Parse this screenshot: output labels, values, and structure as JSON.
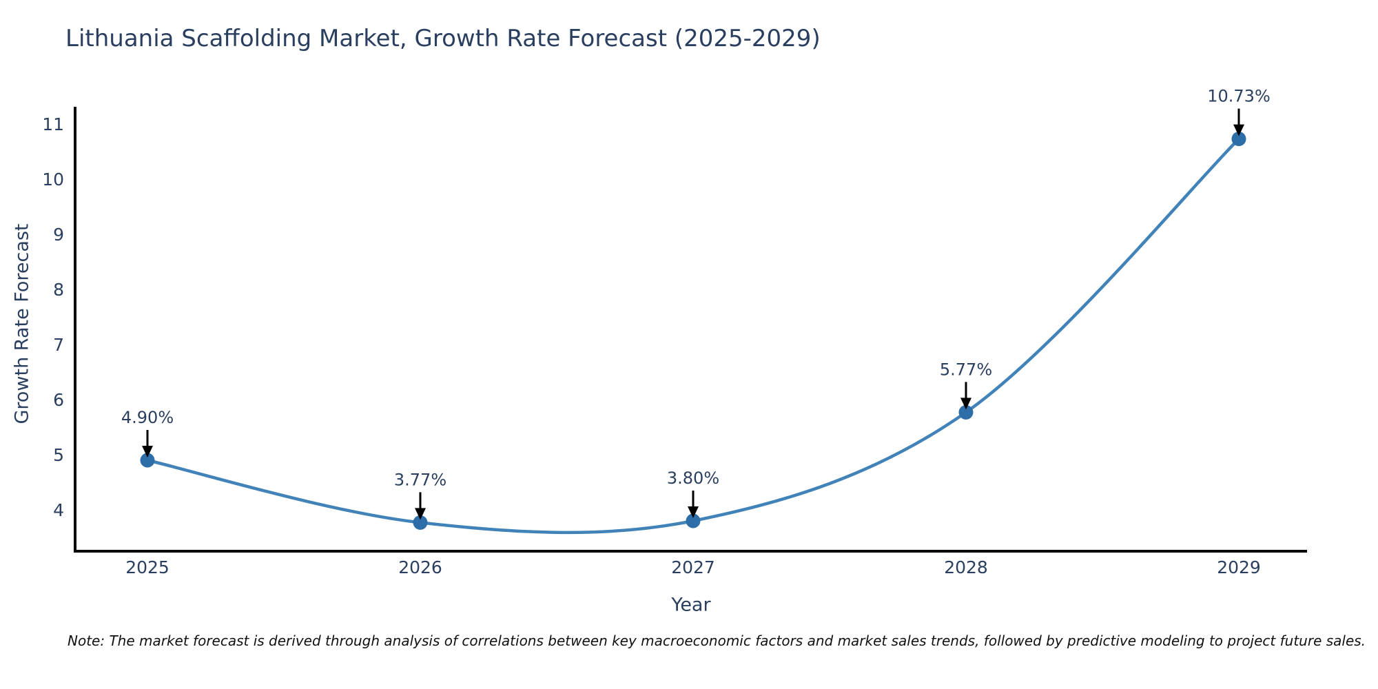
{
  "page": {
    "background": "#ffffff"
  },
  "chart_data": {
    "type": "line",
    "title": "Lithuania Scaffolding Market, Growth Rate Forecast (2025-2029)",
    "xlabel": "Year",
    "ylabel": "Growth Rate Forecast",
    "categories": [
      "2025",
      "2026",
      "2027",
      "2028",
      "2029"
    ],
    "series": [
      {
        "name": "Growth Rate Forecast",
        "values": [
          4.9,
          3.77,
          3.8,
          5.77,
          10.73
        ],
        "point_labels": [
          "4.90%",
          "3.77%",
          "3.80%",
          "5.77%",
          "10.73%"
        ]
      }
    ],
    "yticks": [
      4,
      5,
      6,
      7,
      8,
      9,
      10,
      11
    ],
    "ylim": [
      3.25,
      11.26
    ],
    "grid": false,
    "legend_position": "none",
    "line_shape": "spline",
    "colors": {
      "line": "#4183b8",
      "marker": "#2d6da8",
      "axis": "#000000",
      "tick_text": "#2a3f5f",
      "annotation_text": "#2a3f5f",
      "annotation_arrow": "#000000"
    },
    "note": "Note: The market forecast is derived through analysis of correlations between key macroeconomic factors and market sales trends, followed by predictive modeling to project future sales."
  }
}
